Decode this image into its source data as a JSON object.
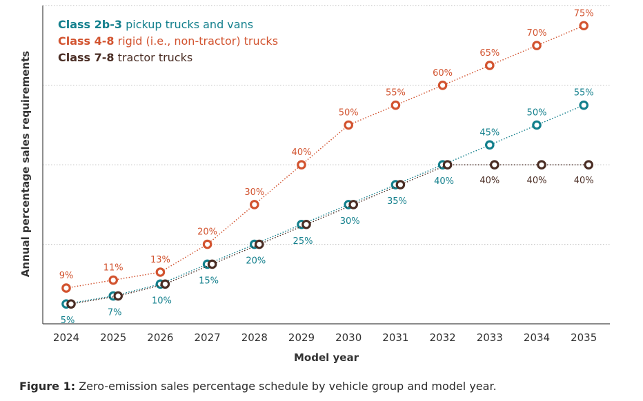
{
  "chart_data": {
    "type": "line",
    "title": "",
    "xlabel": "Model year",
    "ylabel": "Annual percentage sales requirements",
    "x": [
      "2024",
      "2025",
      "2026",
      "2027",
      "2028",
      "2029",
      "2030",
      "2031",
      "2032",
      "2033",
      "2034",
      "2035"
    ],
    "ylim": [
      0,
      80
    ],
    "grid": true,
    "legend_position": "top-left",
    "series": [
      {
        "name_bold": "Class 2b-3",
        "name_rest": " pickup trucks and vans",
        "color": "#127f8c",
        "values": [
          5,
          7,
          10,
          15,
          20,
          25,
          30,
          35,
          40,
          45,
          50,
          55
        ],
        "labels": [
          "5%",
          "7%",
          "10%",
          "15%",
          "20%",
          "25%",
          "30%",
          "35%",
          "40%",
          "45%",
          "50%",
          "55%"
        ]
      },
      {
        "name_bold": "Class 4-8",
        "name_rest": " rigid (i.e., non-tractor) trucks",
        "color": "#d2532f",
        "values": [
          9,
          11,
          13,
          20,
          30,
          40,
          50,
          55,
          60,
          65,
          70,
          75
        ],
        "labels": [
          "9%",
          "11%",
          "13%",
          "20%",
          "30%",
          "40%",
          "50%",
          "55%",
          "60%",
          "65%",
          "70%",
          "75%"
        ]
      },
      {
        "name_bold": "Class 7-8",
        "name_rest": " tractor trucks",
        "color": "#4a2d24",
        "values": [
          5,
          7,
          10,
          15,
          20,
          25,
          30,
          35,
          40,
          40,
          40,
          40
        ],
        "labels": [
          "",
          "",
          "",
          "",
          "",
          "",
          "",
          "",
          "",
          "40%",
          "40%",
          "40%"
        ]
      }
    ]
  },
  "caption": {
    "prefix": "Figure 1:",
    "text": " Zero-emission sales percentage schedule by vehicle group and model year."
  }
}
